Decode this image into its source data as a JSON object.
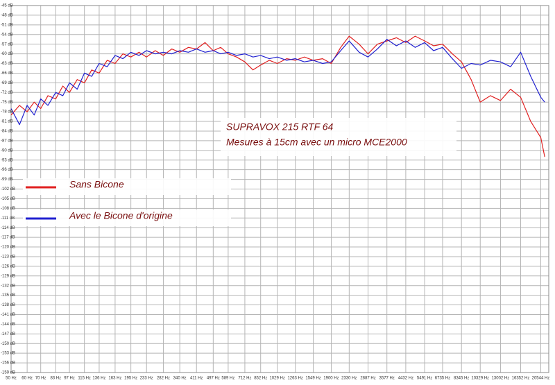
{
  "chart_data": {
    "type": "line",
    "title": "SUPRAVOX 215 RTF 64",
    "subtitle": "Mesures à 15cm avec un micro MCE2000",
    "x_scale": "log",
    "grid": true,
    "legend": "left",
    "xlim": [
      50,
      22500
    ],
    "ylim": [
      -159,
      -45
    ],
    "xticks": [
      {
        "value": 50,
        "label": "50 Hz"
      },
      {
        "value": 60,
        "label": "60 Hz"
      },
      {
        "value": 70,
        "label": "70 Hz"
      },
      {
        "value": 83,
        "label": "83 Hz"
      },
      {
        "value": 97,
        "label": "97 Hz"
      },
      {
        "value": 115,
        "label": "115 Hz"
      },
      {
        "value": 136,
        "label": "136 Hz"
      },
      {
        "value": 163,
        "label": "163 Hz"
      },
      {
        "value": 195,
        "label": "195 Hz"
      },
      {
        "value": 233,
        "label": "233 Hz"
      },
      {
        "value": 282,
        "label": "282 Hz"
      },
      {
        "value": 340,
        "label": "340 Hz"
      },
      {
        "value": 411,
        "label": "411 Hz"
      },
      {
        "value": 497,
        "label": "497 Hz"
      },
      {
        "value": 589,
        "label": "589 Hz"
      },
      {
        "value": 712,
        "label": "712 Hz"
      },
      {
        "value": 852,
        "label": "852 Hz"
      },
      {
        "value": 1029,
        "label": "1029 Hz"
      },
      {
        "value": 1263,
        "label": "1263 Hz"
      },
      {
        "value": 1549,
        "label": "1549 Hz"
      },
      {
        "value": 1900,
        "label": "1900 Hz"
      },
      {
        "value": 2330,
        "label": "2330 Hz"
      },
      {
        "value": 2887,
        "label": "2887 Hz"
      },
      {
        "value": 3577,
        "label": "3577 Hz"
      },
      {
        "value": 4432,
        "label": "4432 Hz"
      },
      {
        "value": 5491,
        "label": "5491 Hz"
      },
      {
        "value": 6735,
        "label": "6735 Hz"
      },
      {
        "value": 8345,
        "label": "8345 Hz"
      },
      {
        "value": 10329,
        "label": "10329 Hz"
      },
      {
        "value": 13002,
        "label": "13002 Hz"
      },
      {
        "value": 16352,
        "label": "16352 Hz"
      },
      {
        "value": 20544,
        "label": "20544 Hz"
      }
    ],
    "yticks": [
      {
        "value": -45,
        "label": "-45 dB"
      },
      {
        "value": -48,
        "label": "-48 dB"
      },
      {
        "value": -51,
        "label": "-51 dB"
      },
      {
        "value": -54,
        "label": "-54 dB"
      },
      {
        "value": -57,
        "label": "-57 dB"
      },
      {
        "value": -60,
        "label": "-60 dB"
      },
      {
        "value": -63,
        "label": "-63 dB"
      },
      {
        "value": -66,
        "label": "-66 dB"
      },
      {
        "value": -69,
        "label": "-69 dB"
      },
      {
        "value": -72,
        "label": "-72 dB"
      },
      {
        "value": -75,
        "label": "-75 dB"
      },
      {
        "value": -78,
        "label": "-78 dB"
      },
      {
        "value": -81,
        "label": "-81 dB"
      },
      {
        "value": -84,
        "label": "-84 dB"
      },
      {
        "value": -87,
        "label": "-87 dB"
      },
      {
        "value": -90,
        "label": "-90 dB"
      },
      {
        "value": -93,
        "label": "-93 dB"
      },
      {
        "value": -96,
        "label": "-96 dB"
      },
      {
        "value": -99,
        "label": "-99 dB"
      },
      {
        "value": -102,
        "label": "-102 dB"
      },
      {
        "value": -105,
        "label": "-105 dB"
      },
      {
        "value": -108,
        "label": "-108 dB"
      },
      {
        "value": -111,
        "label": "-111 dB"
      },
      {
        "value": -114,
        "label": "-114 dB"
      },
      {
        "value": -117,
        "label": "-117 dB"
      },
      {
        "value": -120,
        "label": "-120 dB"
      },
      {
        "value": -123,
        "label": "-123 dB"
      },
      {
        "value": -126,
        "label": "-126 dB"
      },
      {
        "value": -129,
        "label": "-129 dB"
      },
      {
        "value": -132,
        "label": "-132 dB"
      },
      {
        "value": -135,
        "label": "-135 dB"
      },
      {
        "value": -138,
        "label": "-138 dB"
      },
      {
        "value": -141,
        "label": "-141 dB"
      },
      {
        "value": -144,
        "label": "-144 dB"
      },
      {
        "value": -147,
        "label": "-147 dB"
      },
      {
        "value": -150,
        "label": "-150 dB"
      },
      {
        "value": -153,
        "label": "-153 dB"
      },
      {
        "value": -156,
        "label": "-156 dB"
      },
      {
        "value": -159,
        "label": "-159 dB"
      }
    ],
    "x": [
      50,
      55,
      60,
      65,
      70,
      76,
      83,
      90,
      97,
      106,
      115,
      125,
      136,
      149,
      163,
      178,
      195,
      214,
      233,
      257,
      282,
      310,
      340,
      375,
      411,
      453,
      497,
      541,
      589,
      648,
      712,
      781,
      852,
      940,
      1029,
      1145,
      1263,
      1400,
      1549,
      1722,
      1900,
      2115,
      2330,
      2610,
      2887,
      3210,
      3577,
      3985,
      4432,
      4930,
      5491,
      6080,
      6735,
      7520,
      8345,
      9310,
      10329,
      11600,
      13002,
      14580,
      16352,
      18330,
      20544,
      21500
    ],
    "series": [
      {
        "name": "Sans Bicone",
        "color": "#e02020",
        "values": [
          -79,
          -76,
          -78,
          -75,
          -77,
          -73,
          -74,
          -70,
          -72,
          -68,
          -69,
          -65,
          -66,
          -62,
          -63,
          -60,
          -61,
          -59.5,
          -61,
          -59,
          -60.5,
          -58.5,
          -59.5,
          -58,
          -58.5,
          -56.5,
          -59,
          -58,
          -60,
          -61,
          -62.5,
          -65,
          -63.5,
          -62,
          -63,
          -61.5,
          -62,
          -61,
          -62,
          -61.5,
          -63,
          -58,
          -54.5,
          -57,
          -60,
          -57,
          -56,
          -55,
          -56.5,
          -54.5,
          -56,
          -57.5,
          -57,
          -60,
          -62.5,
          -68,
          -75,
          -73,
          -74.5,
          -71,
          -73.5,
          -81,
          -86,
          -92
        ]
      },
      {
        "name": "Avec le Bicone d'origine",
        "color": "#2020d0",
        "values": [
          -77,
          -82,
          -76,
          -79,
          -74,
          -76,
          -72,
          -73,
          -69,
          -71,
          -66,
          -67,
          -63,
          -64,
          -60.5,
          -61.5,
          -59.5,
          -60.5,
          -59,
          -60,
          -59.5,
          -60,
          -59,
          -59.5,
          -58.5,
          -59.5,
          -59,
          -60,
          -59.5,
          -60.5,
          -60,
          -61,
          -60.5,
          -61.5,
          -61,
          -62,
          -61.5,
          -62.5,
          -62,
          -63,
          -62.5,
          -59,
          -56,
          -59.5,
          -61,
          -58.5,
          -55.5,
          -57.5,
          -56,
          -58,
          -56.5,
          -59,
          -58,
          -61.5,
          -64.5,
          -63,
          -63.5,
          -62,
          -62.5,
          -64,
          -59.5,
          -67,
          -73.5,
          -75
        ]
      }
    ]
  }
}
